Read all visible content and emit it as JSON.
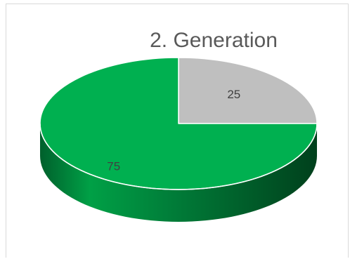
{
  "chart_data": {
    "type": "pie",
    "title": "2. Generation",
    "categories": [
      "",
      ""
    ],
    "values": [
      25,
      75
    ],
    "labels": [
      "25",
      "75"
    ],
    "colors": [
      "#bfbfbf",
      "#00b050"
    ],
    "side_colors": [
      "#8c8c8c",
      "#00803a"
    ],
    "style": "3d"
  }
}
